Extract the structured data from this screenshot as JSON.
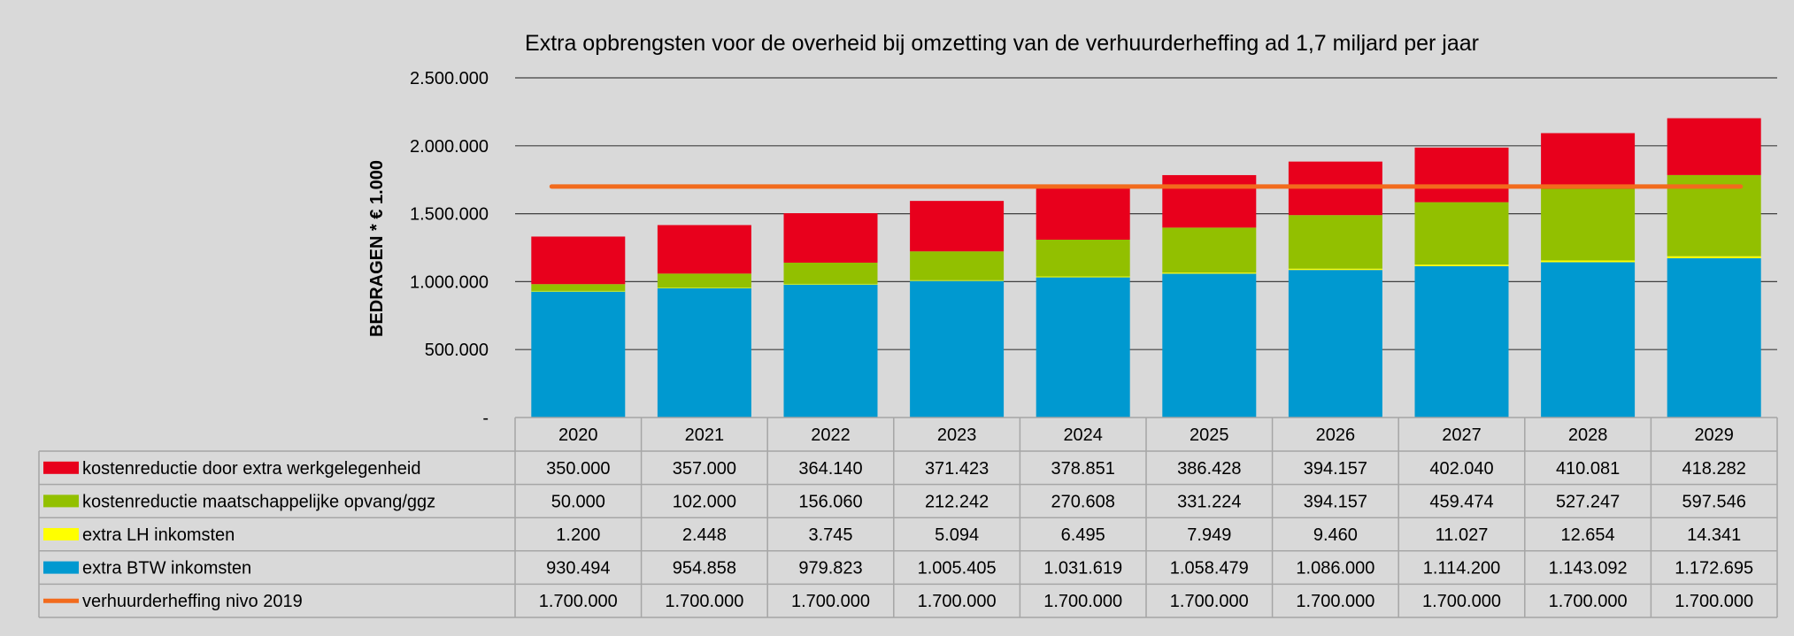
{
  "chart_data": {
    "type": "bar",
    "stacked": true,
    "title": "Extra opbrengsten voor de overheid bij omzetting van de verhuurderheffing ad 1,7 miljard per jaar",
    "ylabel": "BEDRAGEN * € 1.000",
    "xlabel": "",
    "ylim": [
      0,
      2500000
    ],
    "yticks": [
      0,
      500000,
      1000000,
      1500000,
      2000000,
      2500000
    ],
    "ytick_labels": [
      "-",
      "500.000",
      "1.000.000",
      "1.500.000",
      "2.000.000",
      "2.500.000"
    ],
    "grid": true,
    "legend": "data-table-left",
    "categories": [
      "2020",
      "2021",
      "2022",
      "2023",
      "2024",
      "2025",
      "2026",
      "2027",
      "2028",
      "2029"
    ],
    "series": [
      {
        "name": "kostenreductie door extra werkgelegenheid",
        "kind": "bar",
        "color": "#e8001c",
        "values": [
          350000,
          357000,
          364140,
          371423,
          378851,
          386428,
          394157,
          402040,
          410081,
          418282
        ],
        "labels": [
          "350.000",
          "357.000",
          "364.140",
          "371.423",
          "378.851",
          "386.428",
          "394.157",
          "402.040",
          "410.081",
          "418.282"
        ]
      },
      {
        "name": "kostenreductie maatschappelijke opvang/ggz",
        "kind": "bar",
        "color": "#92c000",
        "values": [
          50000,
          102000,
          156060,
          212242,
          270608,
          331224,
          394157,
          459474,
          527247,
          597546
        ],
        "labels": [
          "50.000",
          "102.000",
          "156.060",
          "212.242",
          "270.608",
          "331.224",
          "394.157",
          "459.474",
          "527.247",
          "597.546"
        ]
      },
      {
        "name": "extra LH inkomsten",
        "kind": "bar",
        "color": "#ffff00",
        "values": [
          1200,
          2448,
          3745,
          5094,
          6495,
          7949,
          9460,
          11027,
          12654,
          14341
        ],
        "labels": [
          "1.200",
          "2.448",
          "3.745",
          "5.094",
          "6.495",
          "7.949",
          "9.460",
          "11.027",
          "12.654",
          "14.341"
        ]
      },
      {
        "name": "extra BTW inkomsten",
        "kind": "bar",
        "color": "#0099d0",
        "values": [
          930494,
          954858,
          979823,
          1005405,
          1031619,
          1058479,
          1086000,
          1114200,
          1143092,
          1172695
        ],
        "labels": [
          "930.494",
          "954.858",
          "979.823",
          "1.005.405",
          "1.031.619",
          "1.058.479",
          "1.086.000",
          "1.114.200",
          "1.143.092",
          "1.172.695"
        ]
      },
      {
        "name": "verhuurderheffing nivo 2019",
        "kind": "line",
        "color": "#f26b1d",
        "values": [
          1700000,
          1700000,
          1700000,
          1700000,
          1700000,
          1700000,
          1700000,
          1700000,
          1700000,
          1700000
        ],
        "labels": [
          "1.700.000",
          "1.700.000",
          "1.700.000",
          "1.700.000",
          "1.700.000",
          "1.700.000",
          "1.700.000",
          "1.700.000",
          "1.700.000",
          "1.700.000"
        ]
      }
    ],
    "stack_order_bottom_to_top": [
      3,
      2,
      1,
      0
    ]
  }
}
